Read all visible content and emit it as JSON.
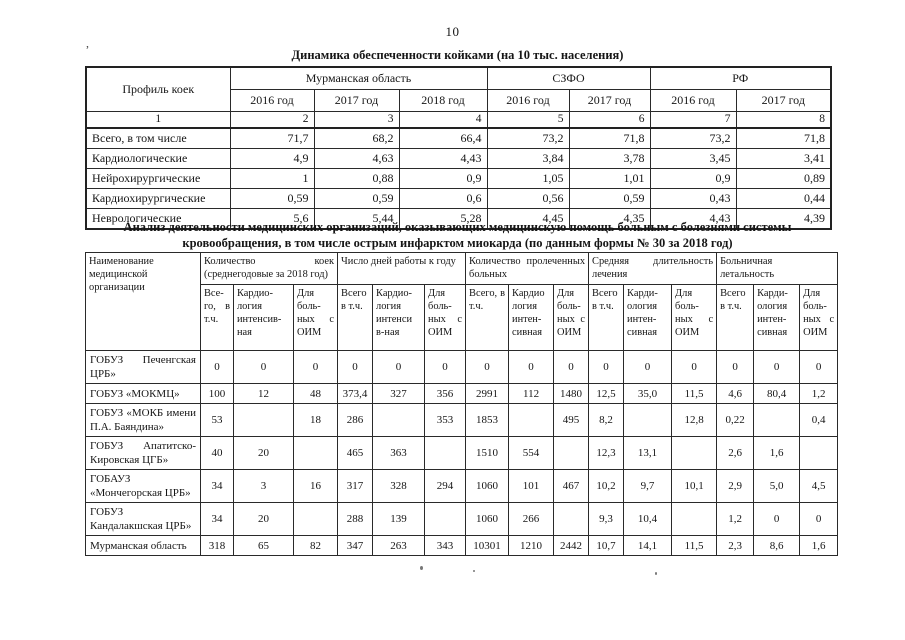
{
  "page": {
    "number": "10"
  },
  "table1": {
    "title": "Динамика обеспеченности койками (на 10 тыс. населения)",
    "col_groups": [
      {
        "label": "Профиль коек"
      },
      {
        "label": "Мурманская область",
        "years": [
          "2016 год",
          "2017 год",
          "2018 год"
        ]
      },
      {
        "label": "СЗФО",
        "years": [
          "2016 год",
          "2017 год"
        ]
      },
      {
        "label": "РФ",
        "years": [
          "2016 год",
          "2017 год"
        ]
      }
    ],
    "index_row": [
      "1",
      "2",
      "3",
      "4",
      "5",
      "6",
      "7",
      "8"
    ],
    "rows": [
      {
        "name": "Всего, в том числе",
        "values": [
          "71,7",
          "68,2",
          "66,4",
          "73,2",
          "71,8",
          "73,2",
          "71,8"
        ]
      },
      {
        "name": "Кардиологические",
        "values": [
          "4,9",
          "4,63",
          "4,43",
          "3,84",
          "3,78",
          "3,45",
          "3,41"
        ]
      },
      {
        "name": "Нейрохирургические",
        "values": [
          "1",
          "0,88",
          "0,9",
          "1,05",
          "1,01",
          "0,9",
          "0,89"
        ]
      },
      {
        "name": "Кардиохирургические",
        "values": [
          "0,59",
          "0,59",
          "0,6",
          "0,56",
          "0,59",
          "0,43",
          "0,44"
        ]
      },
      {
        "name": "Неврологические",
        "values": [
          "5,6",
          "5,44",
          "5,28",
          "4,45",
          "4,35",
          "4,43",
          "4,39"
        ]
      }
    ]
  },
  "table2": {
    "title_line1": "Анализ деятельности медицинских организаций, оказывающих медицинскую помощь больным с болезнями системы",
    "title_line2": "кровообращения, в том числе острым инфарктом миокарда (по данным формы № 30 за 2018 год)",
    "name_header": "Наименование медицинской организации",
    "groups": [
      {
        "label": "Количество коек (среднегодовые за 2018 год)",
        "subs": [
          "Все-го, в т.ч.",
          "Кардио-логия интенсив-ная",
          "Для боль-ных с ОИМ"
        ]
      },
      {
        "label": "Число дней работы к году",
        "subs": [
          "Всего в т.ч.",
          "Кардио-логия интенси в-ная",
          "Для боль-ных с ОИМ"
        ]
      },
      {
        "label": "Количество пролеченных больных",
        "subs": [
          "Всего, в т.ч.",
          "Кардио логия интен-сивная",
          "Для боль-ных с ОИМ"
        ]
      },
      {
        "label": "Средняя длительность лечения",
        "subs": [
          "Всего в т.ч.",
          "Карди-ология интен-сивная",
          "Для боль-ных с ОИМ"
        ]
      },
      {
        "label": "Больничная\nлетальность",
        "subs": [
          "Всего в т.ч.",
          "Карди-ология интен-сивная",
          "Для боль-ных с ОИМ"
        ]
      }
    ],
    "rows": [
      {
        "name": "ГОБУЗ Печенгская ЦРБ»",
        "values": [
          "0",
          "0",
          "0",
          "0",
          "0",
          "0",
          "0",
          "0",
          "0",
          "0",
          "0",
          "0",
          "0",
          "0",
          "0"
        ]
      },
      {
        "name": "ГОБУЗ «МОКМЦ»",
        "values": [
          "100",
          "12",
          "48",
          "373,4",
          "327",
          "356",
          "2991",
          "112",
          "1480",
          "12,5",
          "35,0",
          "11,5",
          "4,6",
          "80,4",
          "1,2"
        ]
      },
      {
        "name": "ГОБУЗ «МОКБ имени П.А. Баяндина»",
        "values": [
          "53",
          "",
          "18",
          "286",
          "",
          "353",
          "1853",
          "",
          "495",
          "8,2",
          "",
          "12,8",
          "0,22",
          "",
          "0,4"
        ]
      },
      {
        "name": "ГОБУЗ Апатитско-Кировская ЦГБ»",
        "values": [
          "40",
          "20",
          "",
          "465",
          "363",
          "",
          "1510",
          "554",
          "",
          "12,3",
          "13,1",
          "",
          "2,6",
          "1,6",
          ""
        ]
      },
      {
        "name": "ГОБАУЗ «Мончегорская ЦРБ»",
        "values": [
          "34",
          "3",
          "16",
          "317",
          "328",
          "294",
          "1060",
          "101",
          "467",
          "10,2",
          "9,7",
          "10,1",
          "2,9",
          "5,0",
          "4,5"
        ]
      },
      {
        "name": "ГОБУЗ Кандалакшская ЦРБ»",
        "values": [
          "34",
          "20",
          "",
          "288",
          "139",
          "",
          "1060",
          "266",
          "",
          "9,3",
          "10,4",
          "",
          "1,2",
          "0",
          "0"
        ]
      },
      {
        "name": "Мурманская область",
        "values": [
          "318",
          "65",
          "82",
          "347",
          "263",
          "343",
          "10301",
          "1210",
          "2442",
          "10,7",
          "14,1",
          "11,5",
          "2,3",
          "8,6",
          "1,6"
        ]
      }
    ]
  }
}
